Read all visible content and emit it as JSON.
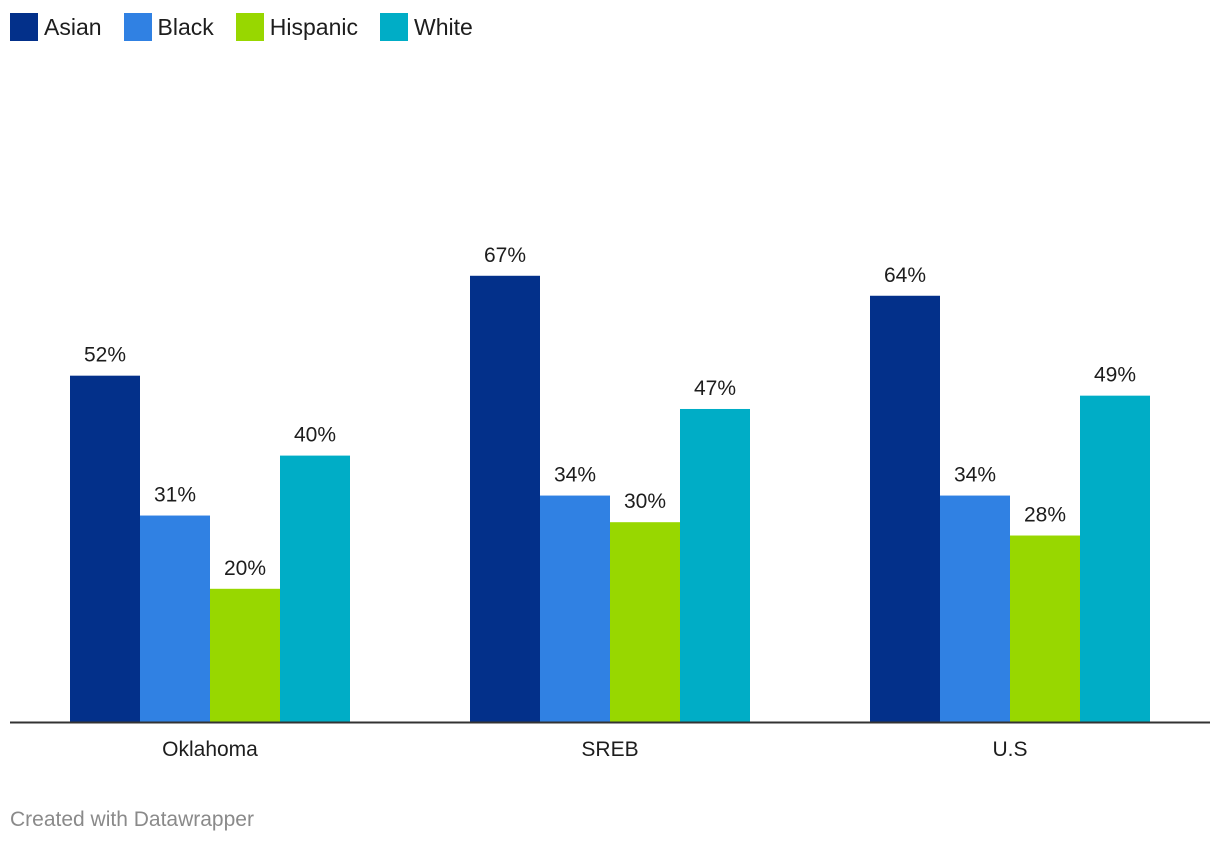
{
  "chart_data": {
    "type": "bar",
    "categories": [
      "Oklahoma",
      "SREB",
      "U.S"
    ],
    "series": [
      {
        "name": "Asian",
        "color": "#03308a",
        "values": [
          52,
          67,
          64
        ],
        "labels": [
          "52%",
          "67%",
          "64%"
        ]
      },
      {
        "name": "Black",
        "color": "#3081e3",
        "values": [
          31,
          34,
          34
        ],
        "labels": [
          "31%",
          "34%",
          "34%"
        ]
      },
      {
        "name": "Hispanic",
        "color": "#98d700",
        "values": [
          20,
          30,
          28
        ],
        "labels": [
          "20%",
          "30%",
          "28%"
        ]
      },
      {
        "name": "White",
        "color": "#00adc6",
        "values": [
          40,
          47,
          49
        ],
        "labels": [
          "40%",
          "47%",
          "49%"
        ]
      }
    ],
    "ylim": [
      0,
      100
    ],
    "value_suffix": "%",
    "legend_position": "top-left",
    "grid": false
  },
  "legend": {
    "items": [
      {
        "label": "Asian",
        "color": "#03308a"
      },
      {
        "label": "Black",
        "color": "#3081e3"
      },
      {
        "label": "Hispanic",
        "color": "#98d700"
      },
      {
        "label": "White",
        "color": "#00adc6"
      }
    ]
  },
  "footer": {
    "credit": "Created with Datawrapper"
  }
}
